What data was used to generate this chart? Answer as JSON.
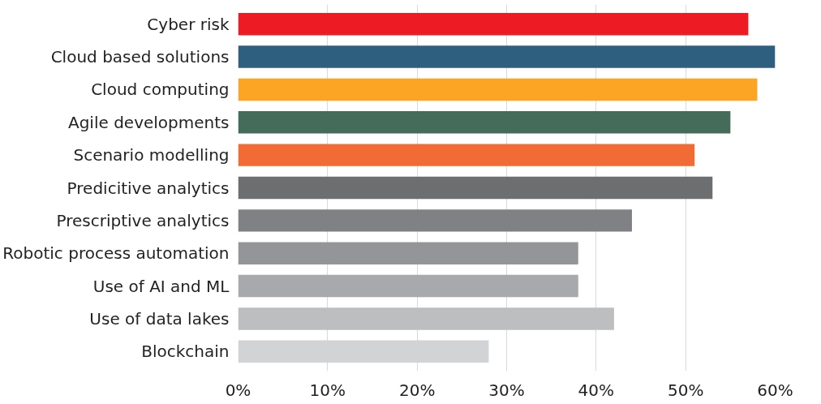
{
  "chart_data": {
    "type": "bar",
    "orientation": "horizontal",
    "categories": [
      "Cyber risk",
      "Cloud based solutions",
      "Cloud computing",
      "Agile developments",
      "Scenario modelling",
      "Predicitive analytics",
      "Prescriptive analytics",
      "Robotic process automation",
      "Use of AI and ML",
      "Use of data lakes",
      "Blockchain"
    ],
    "values": [
      57,
      60,
      58,
      55,
      51,
      53,
      44,
      38,
      38,
      42,
      28
    ],
    "colors": [
      "#ed1c24",
      "#2e5f7f",
      "#fca524",
      "#456b5a",
      "#f26b35",
      "#6d6e70",
      "#808184",
      "#939598",
      "#a7a9ac",
      "#bcbec0",
      "#d1d3d4"
    ],
    "xlim": [
      0,
      60
    ],
    "xticks": [
      {
        "value": 0,
        "label": "0%"
      },
      {
        "value": 10,
        "label": "10%"
      },
      {
        "value": 20,
        "label": "20%"
      },
      {
        "value": 30,
        "label": "30%"
      },
      {
        "value": 40,
        "label": "40%"
      },
      {
        "value": 50,
        "label": "50%"
      },
      {
        "value": 60,
        "label": "60%"
      }
    ],
    "grid": "x"
  }
}
